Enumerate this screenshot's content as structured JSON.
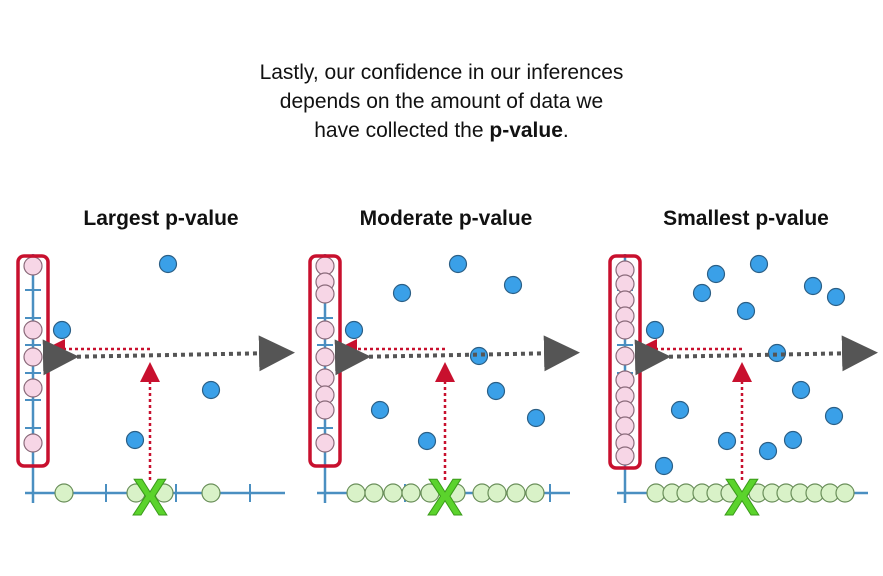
{
  "caption": {
    "line1": "Lastly, our confidence in our inferences",
    "line2": "depends on the amount of data we",
    "line3_pre": "have collected the ",
    "line3_bold": "p-value",
    "line3_post": "."
  },
  "panels": [
    {
      "title": "Largest p-value",
      "x_marker": "X",
      "colors": {
        "axis": "#4a8fc1",
        "residual": "#f7d6e6",
        "data": "#3aa0e8",
        "ground": "#d9f2c8",
        "box": "#c8102e",
        "marker": "#5bd32c",
        "guide_red": "#c8102e",
        "guide_gray": "#555555"
      }
    },
    {
      "title": "Moderate p-value",
      "x_marker": "X"
    },
    {
      "title": "Smallest p-value",
      "x_marker": "X"
    }
  ]
}
